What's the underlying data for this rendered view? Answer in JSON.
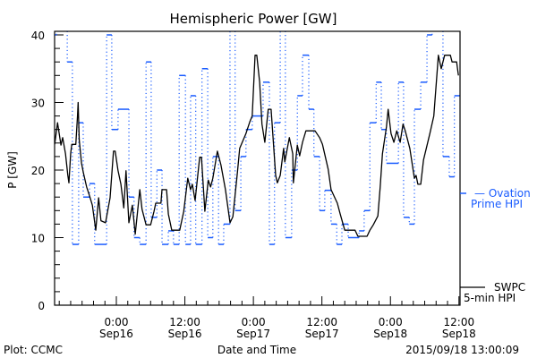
{
  "chart_data": {
    "type": "line",
    "title": "Hemispheric Power [GW]",
    "xlabel": "Date and Time",
    "ylabel": "P [GW]",
    "x_units": "hours relative to Sep16 0:00",
    "xlim": [
      -11,
      60.2
    ],
    "ylim": [
      0,
      40
    ],
    "y_ticks": [
      0,
      10,
      20,
      30,
      40
    ],
    "y_tick_labels": [
      "0",
      "10",
      "20",
      "30",
      "40"
    ],
    "y_minor_step": 2,
    "x_ticks": [
      0,
      12,
      24,
      36,
      48,
      60
    ],
    "x_tick_labels": [
      {
        "time": "0:00",
        "date": "Sep16"
      },
      {
        "time": "12:00",
        "date": "Sep16"
      },
      {
        "time": "0:00",
        "date": "Sep17"
      },
      {
        "time": "12:00",
        "date": "Sep17"
      },
      {
        "time": "0:00",
        "date": "Sep18"
      },
      {
        "time": "12:00",
        "date": "Sep18"
      }
    ],
    "x_minor_step": 2,
    "legend": {
      "placement": "right-outside",
      "ovation_line1": "— Ovation",
      "ovation_line2": "Prime HPI",
      "swpc_line1": "SWPC",
      "swpc_line2": "5-min HPI"
    },
    "colors": {
      "swpc": "#000000",
      "ovation": "#1a5cff"
    },
    "series": [
      {
        "name": "SWPC 5-min HPI",
        "style": "solid",
        "x": [
          -10.8,
          -10.3,
          -9.7,
          -9.4,
          -8.9,
          -8.5,
          -8.3,
          -8.0,
          -7.8,
          -7.1,
          -6.8,
          -6.7,
          -6.5,
          -6.1,
          -5.8,
          -5.2,
          -4.7,
          -4.2,
          -3.6,
          -3.1,
          -2.7,
          -1.9,
          -1.1,
          -0.5,
          -0.2,
          0.3,
          0.8,
          1.3,
          1.7,
          2.2,
          2.8,
          3.3,
          4.1,
          4.5,
          5.2,
          6.0,
          6.6,
          6.9,
          7.8,
          8.0,
          8.8,
          9.1,
          9.7,
          11.1,
          11.8,
          12.5,
          13.0,
          13.3,
          13.8,
          14.6,
          14.9,
          15.5,
          16.1,
          16.5,
          16.9,
          17.7,
          18.3,
          19.1,
          19.9,
          20.4,
          21.2,
          21.6,
          22.7,
          23.4,
          23.8,
          24.3,
          24.6,
          25.1,
          25.5,
          26.0,
          26.6,
          27.1,
          27.9,
          28.2,
          28.7,
          29.3,
          29.5,
          30.3,
          30.9,
          31.0,
          31.7,
          32.1,
          32.6,
          33.2,
          34.8,
          35.6,
          36.1,
          37.1,
          37.6,
          38.7,
          39.2,
          40.0,
          41.8,
          42.3,
          43.9,
          44.4,
          45.0,
          45.8,
          46.2,
          46.6,
          47.3,
          47.6,
          48.1,
          48.6,
          49.1,
          49.7,
          50.2,
          50.6,
          51.4,
          52.2,
          52.5,
          52.8,
          53.3,
          53.8,
          54.9,
          55.6,
          56.4,
          56.9,
          57.5,
          58.5,
          58.8,
          59.6,
          59.9
        ],
        "y": [
          23.8,
          27,
          23.7,
          24.8,
          22.4,
          19.2,
          18.1,
          22.5,
          23.8,
          23.8,
          28,
          30,
          24.5,
          21,
          19.7,
          17.5,
          16.2,
          14.8,
          11.1,
          15.9,
          12.5,
          12.2,
          15.9,
          22.8,
          22.8,
          19.9,
          17.9,
          14.4,
          19.9,
          12.2,
          14.8,
          10.5,
          17.1,
          14.2,
          11.9,
          11.9,
          13.9,
          15.1,
          15.1,
          17.1,
          17.1,
          13.5,
          11.1,
          11.1,
          13.9,
          18.8,
          17.1,
          17.9,
          15.5,
          21.9,
          21.9,
          13.9,
          18.5,
          17.5,
          18.8,
          22.8,
          20.8,
          17.1,
          12.2,
          13.1,
          19.7,
          23.2,
          25.4,
          27.2,
          28,
          37,
          37,
          33,
          26.8,
          24.1,
          29,
          29,
          19.2,
          18.1,
          19.2,
          23.2,
          21.2,
          24.8,
          22.4,
          18.1,
          23.7,
          22.1,
          24.1,
          25.8,
          25.8,
          24.8,
          23.8,
          20.1,
          17.1,
          15.1,
          13.5,
          11.1,
          11.1,
          10.2,
          10.2,
          11.1,
          11.9,
          13.2,
          17.5,
          22.4,
          26.4,
          29,
          25.4,
          24.1,
          25.8,
          24.1,
          26.8,
          25.8,
          23.2,
          18.8,
          19.2,
          17.9,
          17.9,
          21.5,
          25.4,
          28,
          37,
          35,
          37,
          37,
          36,
          36,
          34
        ]
      },
      {
        "name": "Ovation Prime HPI",
        "style": "step",
        "boundaries": [
          -11.0,
          -10.5,
          -8.6,
          -7.7,
          -6.6,
          -5.8,
          -4.7,
          -3.8,
          -1.7,
          -0.8,
          0.3,
          2.2,
          3.1,
          4.1,
          5.2,
          6.1,
          7.1,
          8.0,
          9.1,
          10.0,
          11.0,
          12.1,
          13.0,
          13.9,
          15.0,
          16.0,
          16.9,
          17.9,
          18.8,
          19.9,
          20.8,
          21.8,
          22.7,
          23.8,
          25.7,
          26.8,
          27.7,
          28.7,
          29.6,
          30.7,
          31.7,
          32.6,
          33.7,
          34.6,
          35.6,
          36.5,
          37.6,
          38.6,
          39.5,
          40.6,
          42.5,
          43.4,
          44.4,
          45.5,
          46.4,
          47.3,
          49.4,
          50.3,
          51.3,
          52.2,
          53.3,
          54.4,
          55.3,
          57.2,
          58.3,
          59.2,
          60.2
        ],
        "values": [
          40,
          45,
          36,
          9,
          27,
          16,
          18,
          9,
          40,
          26,
          29,
          16,
          10,
          9,
          36,
          13,
          20,
          9,
          11,
          9,
          34,
          9,
          31,
          9,
          35,
          10,
          22,
          9,
          12,
          45,
          14,
          22,
          26,
          28,
          33,
          9,
          27,
          45,
          10,
          20,
          31,
          37,
          29,
          22,
          14,
          17,
          12,
          9,
          12,
          10,
          11,
          14,
          27,
          33,
          26,
          21,
          33,
          13,
          12,
          29,
          33,
          40,
          45,
          22,
          19,
          31
        ]
      }
    ]
  },
  "footer": {
    "left": "Plot: CCMC",
    "right": "2015/09/18 13:00:09"
  }
}
